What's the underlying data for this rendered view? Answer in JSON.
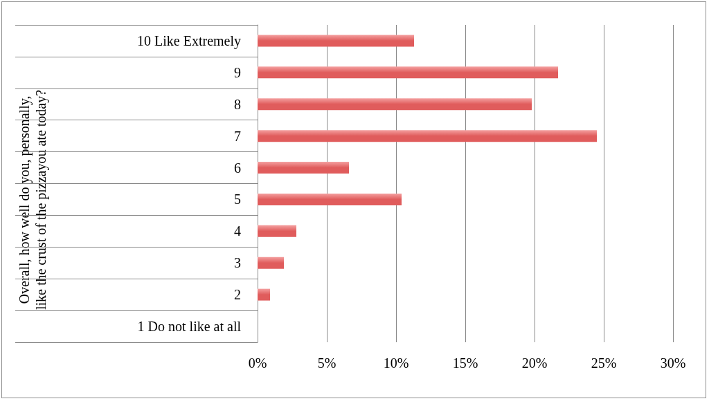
{
  "chart_data": {
    "type": "bar",
    "orientation": "horizontal",
    "annotations": [
      "Overall, how well do you, personally, like the crust of the pizzayou ate today?"
    ],
    "categories": [
      "10 Like Extremely",
      "9",
      "8",
      "7",
      "6",
      "5",
      "4",
      "3",
      "2",
      "1 Do not like at all"
    ],
    "values": [
      11.3,
      21.7,
      19.8,
      24.5,
      6.6,
      10.4,
      2.8,
      1.9,
      0.9,
      0
    ],
    "color": "#e05c5c",
    "xlim": [
      0,
      30
    ],
    "xticks": [
      {
        "value": 0,
        "label": "0%"
      },
      {
        "value": 5,
        "label": "5%"
      },
      {
        "value": 10,
        "label": "10%"
      },
      {
        "value": 15,
        "label": "15%"
      },
      {
        "value": 20,
        "label": "20%"
      },
      {
        "value": 25,
        "label": "25%"
      },
      {
        "value": 30,
        "label": "30%"
      }
    ],
    "grid": "x"
  }
}
